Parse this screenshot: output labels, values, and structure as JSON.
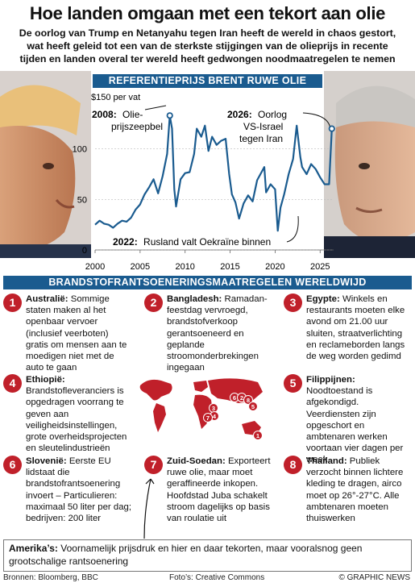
{
  "header": {
    "title": "Hoe landen omgaan met een tekort aan olie",
    "subtitle": "De oorlog van Trump en Netanyahu tegen Iran heeft de wereld in chaos gestort, wat heeft geleid tot een van de sterkste stijgingen van de olieprijs in recente tijden en landen overal ter wereld heeft gedwongen noodmaatregelen te nemen"
  },
  "chart_section_label": "REFERENTIEPRIJS BRENT RUWE OLIE",
  "chart_data": {
    "type": "line",
    "ylabel": "$150 per vat",
    "ylim": [
      0,
      150
    ],
    "xlim": [
      2000,
      2026.5
    ],
    "yticks": [
      0,
      50,
      100
    ],
    "xticks": [
      2000,
      2005,
      2010,
      2015,
      2020,
      2025
    ],
    "series": [
      {
        "x": [
          2000,
          2000.5,
          2001,
          2001.5,
          2002,
          2002.5,
          2003,
          2003.5,
          2004,
          2004.5,
          2005,
          2005.5,
          2006,
          2006.5,
          2007,
          2007.5,
          2008,
          2008.3,
          2008.55,
          2008.8,
          2009,
          2009.5,
          2010,
          2010.5,
          2011,
          2011.3,
          2011.8,
          2012.2,
          2012.6,
          2013,
          2013.5,
          2014,
          2014.5,
          2014.9,
          2015.2,
          2015.6,
          2016,
          2016.5,
          2017,
          2017.5,
          2018,
          2018.8,
          2019,
          2019.5,
          2020,
          2020.3,
          2020.6,
          2021,
          2021.5,
          2022,
          2022.4,
          2022.8,
          2023,
          2023.5,
          2024,
          2024.5,
          2025,
          2025.5,
          2026,
          2026.3
        ],
        "values": [
          25,
          29,
          26,
          25,
          22,
          26,
          29,
          28,
          32,
          40,
          45,
          55,
          62,
          70,
          56,
          73,
          95,
          133,
          120,
          60,
          43,
          70,
          76,
          77,
          95,
          120,
          112,
          123,
          98,
          112,
          104,
          108,
          110,
          75,
          55,
          47,
          31,
          46,
          54,
          48,
          69,
          82,
          57,
          65,
          60,
          19,
          42,
          55,
          75,
          90,
          123,
          92,
          82,
          75,
          85,
          80,
          72,
          65,
          65,
          120
        ]
      }
    ],
    "annotations": [
      {
        "year": "2008:",
        "text1": "Olie-",
        "text2": "prijszeepbel"
      },
      {
        "year": "2026:",
        "text1": "Oorlog",
        "text2": "VS-Israel",
        "text3": "tegen Iran"
      },
      {
        "year": "2022:",
        "text": "Rusland valt Oekraïne binnen"
      }
    ]
  },
  "measures_label": "BRANDSTOFRANTSOENERINGSMAATREGELEN WERELDWIJD",
  "measures": [
    {
      "num": "1",
      "country": "Australië:",
      "text": "Sommige staten maken al het openbaar vervoer (inclusief veerboten) gratis om mensen aan te moedigen niet met de auto te gaan"
    },
    {
      "num": "2",
      "country": "Bangladesh:",
      "text": "Ramadan-feestdag vervroegd, brandstofverkoop gerantsoeneerd en geplande stroomonderbrekingen ingegaan"
    },
    {
      "num": "3",
      "country": "Egypte:",
      "text": "Winkels en restaurants moeten elke avond om 21.00 uur sluiten, straatverlichting en reclameborden langs de weg worden gedimd"
    },
    {
      "num": "4",
      "country": "Ethiopië:",
      "text": "Brandstofleveranciers is opgedragen voorrang te geven aan veiligheidsinstellingen, grote overheidsprojecten en sleutelindustrieën"
    },
    {
      "num": "5",
      "country": "Filippijnen:",
      "text": "Noodtoestand is afgekondigd. Veerdiensten zijn opgeschort en ambtenaren werken voortaan vier dagen per week."
    },
    {
      "num": "6",
      "country": "Slovenië:",
      "text": "Eerste EU lidstaat die brandstofrantsoenering invoert – Particulieren: maximaal 50 liter per dag; bedrijven: 200 liter"
    },
    {
      "num": "7",
      "country": "Zuid-Soedan:",
      "text": "Exporteert ruwe olie, maar moet geraffineerde inkopen. Hoofdstad Juba schakelt stroom dagelijks op basis van roulatie uit"
    },
    {
      "num": "8",
      "country": "Thailand:",
      "text": "Publiek verzocht binnen lichtere kleding te dragen, airco moet op 26°-27°C. Alle ambtenaren moeten thuiswerken"
    }
  ],
  "americas": {
    "label": "Amerika’s:",
    "text": "Voornamelijk prijsdruk en hier en daar tekorten, maar vooralsnog geen grootschalige rantsoenering"
  },
  "footer": {
    "sources": "Bronnen: Bloomberg, BBC",
    "photos": "Foto’s: Creative Commons",
    "credit": "© GRAPHIC NEWS"
  },
  "colors": {
    "accent": "#c0202a",
    "band": "#1a5b8f",
    "line": "#1a5b8f",
    "map": "#c0202a"
  }
}
